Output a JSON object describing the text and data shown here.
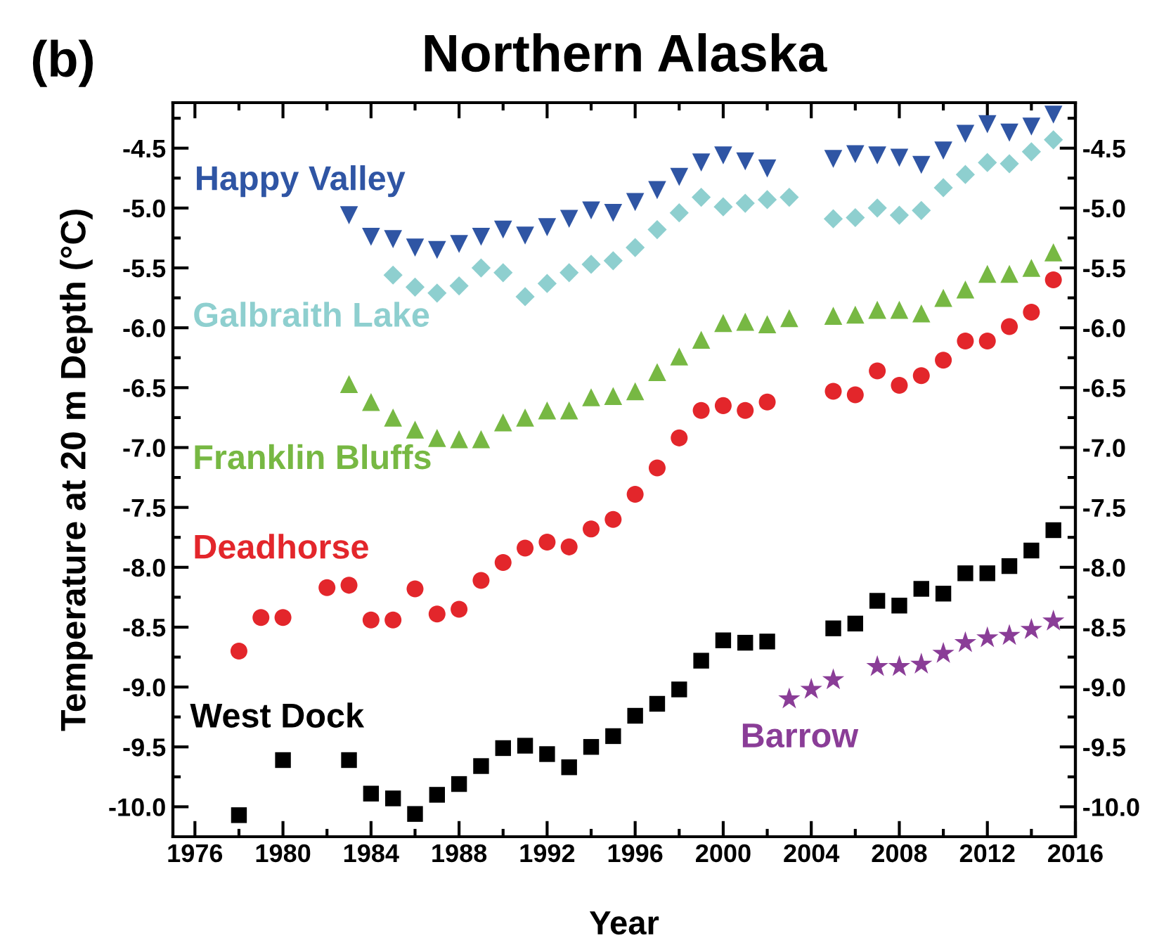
{
  "chart_data": {
    "type": "scatter",
    "title": "Northern Alaska",
    "annotations": [
      "(b)"
    ],
    "xlabel": "Year",
    "ylabel": "Temperature at 20 m Depth (°C)",
    "xlim": [
      1975,
      2016
    ],
    "ylim": [
      -10.25,
      -4.12
    ],
    "y2lim": [
      -10.25,
      -4.12
    ],
    "xticks": [
      1976,
      {
        "value": 1978,
        "label": null
      },
      1980,
      {
        "value": 1982,
        "label": null
      },
      1984,
      {
        "value": 1986,
        "label": null
      },
      1988,
      {
        "value": 1990,
        "label": null
      },
      1992,
      {
        "value": 1994,
        "label": null
      },
      1996,
      {
        "value": 1998,
        "label": null
      },
      2000,
      {
        "value": 2002,
        "label": null
      },
      2004,
      {
        "value": 2006,
        "label": null
      },
      2008,
      {
        "value": 2010,
        "label": null
      },
      2012,
      {
        "value": 2014,
        "label": null
      },
      2016
    ],
    "yticks": [
      {
        "value": -4.25,
        "label": null
      },
      {
        "value": -4.5,
        "label": "-4.5"
      },
      {
        "value": -4.75,
        "label": null
      },
      {
        "value": -5.0,
        "label": "-5.0"
      },
      {
        "value": -5.25,
        "label": null
      },
      {
        "value": -5.5,
        "label": "-5.5"
      },
      {
        "value": -5.75,
        "label": null
      },
      {
        "value": -6.0,
        "label": "-6.0"
      },
      {
        "value": -6.25,
        "label": null
      },
      {
        "value": -6.5,
        "label": "-6.5"
      },
      {
        "value": -6.75,
        "label": null
      },
      {
        "value": -7.0,
        "label": "-7.0"
      },
      {
        "value": -7.25,
        "label": null
      },
      {
        "value": -7.5,
        "label": "-7.5"
      },
      {
        "value": -7.75,
        "label": null
      },
      {
        "value": -8.0,
        "label": "-8.0"
      },
      {
        "value": -8.25,
        "label": null
      },
      {
        "value": -8.5,
        "label": "-8.5"
      },
      {
        "value": -8.75,
        "label": null
      },
      {
        "value": -9.0,
        "label": "-9.0"
      },
      {
        "value": -9.25,
        "label": null
      },
      {
        "value": -9.5,
        "label": "-9.5"
      },
      {
        "value": -9.75,
        "label": null
      },
      {
        "value": -10.0,
        "label": "-10.0"
      }
    ],
    "y2ticks": [
      {
        "value": -4.25,
        "label": null
      },
      {
        "value": -4.5,
        "label": "-4.5"
      },
      {
        "value": -4.75,
        "label": null
      },
      {
        "value": -5.0,
        "label": "-5.0"
      },
      {
        "value": -5.25,
        "label": null
      },
      {
        "value": -5.5,
        "label": "-5.5"
      },
      {
        "value": -5.75,
        "label": null
      },
      {
        "value": -6.0,
        "label": "-6.0"
      },
      {
        "value": -6.25,
        "label": null
      },
      {
        "value": -6.5,
        "label": "-6.5"
      },
      {
        "value": -6.75,
        "label": null
      },
      {
        "value": -7.0,
        "label": "-7.0"
      },
      {
        "value": -7.25,
        "label": null
      },
      {
        "value": -7.5,
        "label": "-7.5"
      },
      {
        "value": -7.75,
        "label": null
      },
      {
        "value": -8.0,
        "label": "-8.0"
      },
      {
        "value": -8.25,
        "label": null
      },
      {
        "value": -8.5,
        "label": "-8.5"
      },
      {
        "value": -8.75,
        "label": null
      },
      {
        "value": -9.0,
        "label": "-9.0"
      },
      {
        "value": -9.25,
        "label": null
      },
      {
        "value": -9.5,
        "label": "-9.5"
      },
      {
        "value": -9.75,
        "label": null
      },
      {
        "value": -10.0,
        "label": "-10.0"
      }
    ],
    "grid": false,
    "legend": false,
    "series": [
      {
        "name": "Happy Valley",
        "color": "#2f55a4",
        "marker": "triangle-down",
        "x": [
          1983,
          1984,
          1985,
          1986,
          1987,
          1988,
          1989,
          1990,
          1991,
          1992,
          1993,
          1994,
          1995,
          1996,
          1997,
          1998,
          1999,
          2000,
          2001,
          2002,
          2005,
          2006,
          2007,
          2008,
          2009,
          2010,
          2011,
          2012,
          2013,
          2014,
          2015
        ],
        "values": [
          -5.06,
          -5.24,
          -5.26,
          -5.33,
          -5.35,
          -5.3,
          -5.24,
          -5.18,
          -5.23,
          -5.16,
          -5.09,
          -5.02,
          -5.04,
          -4.95,
          -4.85,
          -4.74,
          -4.62,
          -4.56,
          -4.61,
          -4.67,
          -4.59,
          -4.55,
          -4.56,
          -4.58,
          -4.64,
          -4.52,
          -4.38,
          -4.3,
          -4.37,
          -4.32,
          -4.22
        ]
      },
      {
        "name": "Galbraith Lake",
        "color": "#8ecfcf",
        "marker": "diamond",
        "x": [
          1985,
          1986,
          1987,
          1988,
          1989,
          1990,
          1991,
          1992,
          1993,
          1994,
          1995,
          1996,
          1997,
          1998,
          1999,
          2000,
          2001,
          2002,
          2003,
          2005,
          2006,
          2007,
          2008,
          2009,
          2010,
          2011,
          2012,
          2013,
          2014,
          2015
        ],
        "values": [
          -5.56,
          -5.66,
          -5.71,
          -5.65,
          -5.5,
          -5.54,
          -5.74,
          -5.63,
          -5.54,
          -5.47,
          -5.44,
          -5.33,
          -5.18,
          -5.04,
          -4.91,
          -4.99,
          -4.96,
          -4.93,
          -4.91,
          -5.09,
          -5.08,
          -5.0,
          -5.06,
          -5.02,
          -4.83,
          -4.72,
          -4.62,
          -4.63,
          -4.53,
          -4.43
        ]
      },
      {
        "name": "Franklin Bluffs",
        "color": "#77b843",
        "marker": "triangle",
        "x": [
          1983,
          1984,
          1985,
          1986,
          1987,
          1988,
          1989,
          1990,
          1991,
          1992,
          1993,
          1994,
          1995,
          1996,
          1997,
          1998,
          1999,
          2000,
          2001,
          2002,
          2003,
          2005,
          2006,
          2007,
          2008,
          2009,
          2010,
          2011,
          2012,
          2013,
          2014,
          2015
        ],
        "values": [
          -6.47,
          -6.62,
          -6.75,
          -6.85,
          -6.92,
          -6.93,
          -6.93,
          -6.79,
          -6.75,
          -6.69,
          -6.69,
          -6.58,
          -6.57,
          -6.53,
          -6.37,
          -6.24,
          -6.1,
          -5.96,
          -5.95,
          -5.97,
          -5.92,
          -5.9,
          -5.89,
          -5.85,
          -5.85,
          -5.88,
          -5.75,
          -5.68,
          -5.55,
          -5.55,
          -5.5,
          -5.37
        ]
      },
      {
        "name": "Deadhorse",
        "color": "#e3262b",
        "marker": "circle",
        "x": [
          1978,
          1979,
          1980,
          1982,
          1983,
          1984,
          1985,
          1986,
          1987,
          1988,
          1989,
          1990,
          1991,
          1992,
          1993,
          1994,
          1995,
          1996,
          1997,
          1998,
          1999,
          2000,
          2001,
          2002,
          2005,
          2006,
          2007,
          2008,
          2009,
          2010,
          2011,
          2012,
          2013,
          2014,
          2015
        ],
        "values": [
          -8.7,
          -8.42,
          -8.42,
          -8.17,
          -8.15,
          -8.44,
          -8.44,
          -8.18,
          -8.39,
          -8.35,
          -8.11,
          -7.96,
          -7.84,
          -7.79,
          -7.83,
          -7.68,
          -7.6,
          -7.39,
          -7.17,
          -6.92,
          -6.69,
          -6.65,
          -6.69,
          -6.62,
          -6.53,
          -6.56,
          -6.36,
          -6.48,
          -6.4,
          -6.27,
          -6.11,
          -6.11,
          -5.99,
          -5.87,
          -5.6
        ]
      },
      {
        "name": "West Dock",
        "color": "#000000",
        "marker": "square",
        "x": [
          1978,
          1980,
          1983,
          1984,
          1985,
          1986,
          1987,
          1988,
          1989,
          1990,
          1991,
          1992,
          1993,
          1994,
          1995,
          1996,
          1997,
          1998,
          1999,
          2000,
          2001,
          2002,
          2005,
          2006,
          2007,
          2008,
          2009,
          2010,
          2011,
          2012,
          2013,
          2014,
          2015
        ],
        "values": [
          -10.07,
          -9.61,
          -9.61,
          -9.89,
          -9.93,
          -10.06,
          -9.9,
          -9.81,
          -9.66,
          -9.51,
          -9.49,
          -9.56,
          -9.67,
          -9.5,
          -9.41,
          -9.24,
          -9.14,
          -9.02,
          -8.78,
          -8.61,
          -8.63,
          -8.62,
          -8.51,
          -8.47,
          -8.28,
          -8.32,
          -8.18,
          -8.22,
          -8.05,
          -8.05,
          -7.99,
          -7.86,
          -7.69
        ]
      },
      {
        "name": "Barrow",
        "color": "#8a3d97",
        "marker": "star",
        "x": [
          2003,
          2004,
          2005,
          2007,
          2008,
          2009,
          2010,
          2011,
          2012,
          2013,
          2014,
          2015
        ],
        "values": [
          -9.1,
          -9.02,
          -8.94,
          -8.83,
          -8.83,
          -8.81,
          -8.72,
          -8.63,
          -8.59,
          -8.57,
          -8.52,
          -8.45
        ]
      }
    ]
  }
}
